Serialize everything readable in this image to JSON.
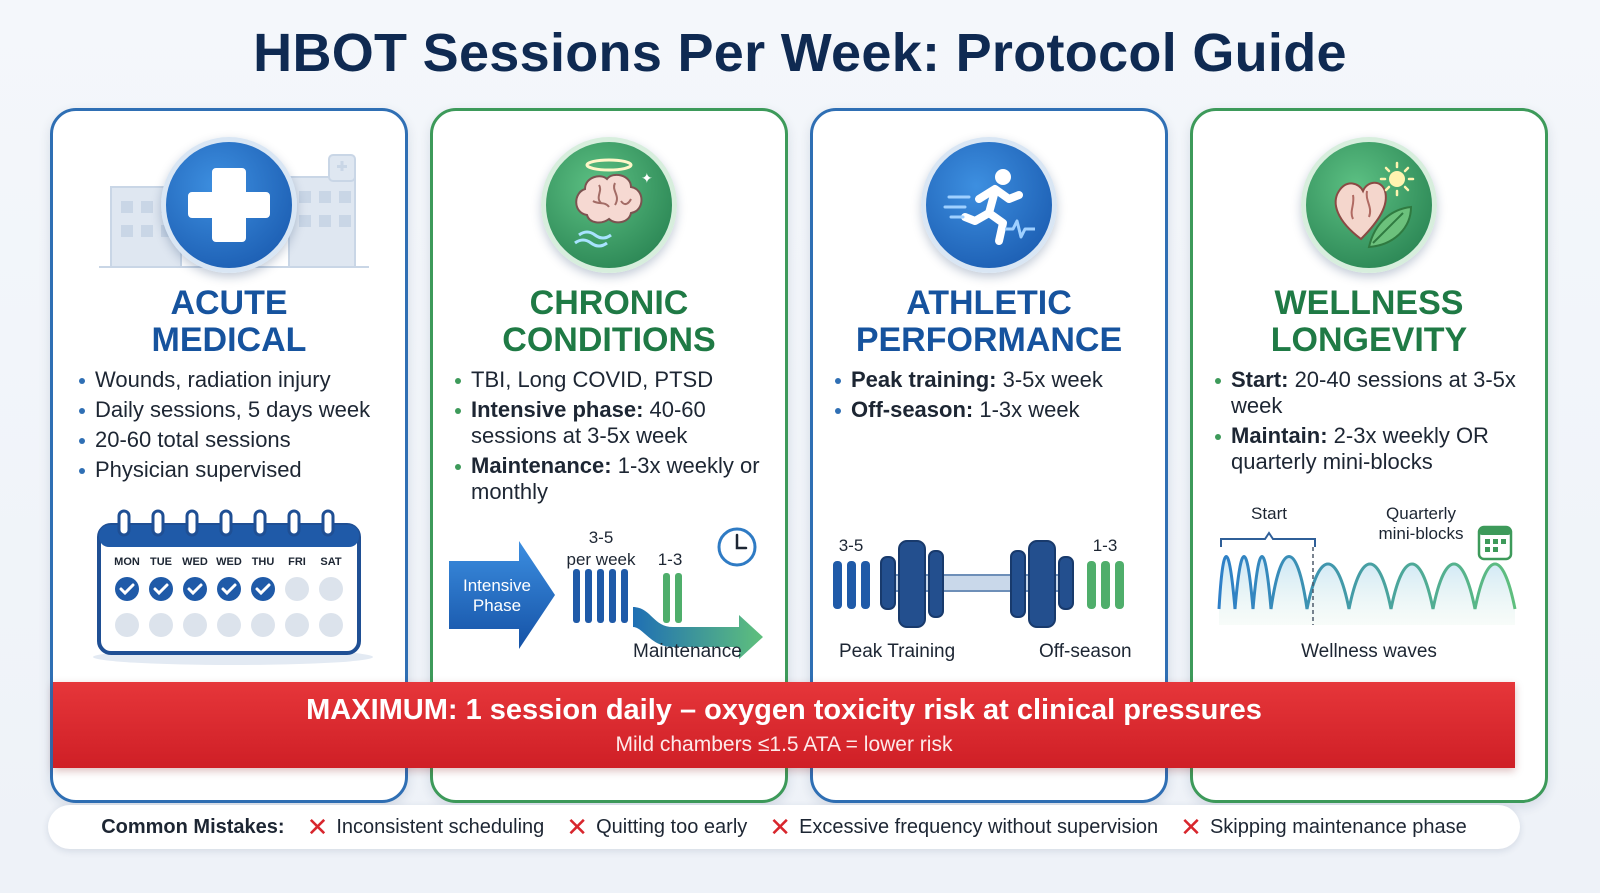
{
  "title": "HBOT Sessions Per Week: Protocol Guide",
  "cards": [
    {
      "title_line1": "ACUTE",
      "title_line2": "MEDICAL",
      "icon": "medical-cross-icon",
      "bullets": [
        {
          "bold": "",
          "text": "Wounds, radiation injury"
        },
        {
          "bold": "",
          "text": "Daily sessions, 5 days week"
        },
        {
          "bold": "",
          "text": "20-60 total sessions"
        },
        {
          "bold": "",
          "text": "Physician supervised"
        }
      ],
      "calendar_days": [
        "MON",
        "TUE",
        "WED",
        "WED",
        "THU",
        "FRI",
        "SAT"
      ]
    },
    {
      "title_line1": "CHRONIC",
      "title_line2": "CONDITIONS",
      "icon": "brain-icon",
      "bullets": [
        {
          "bold": "",
          "text": "TBI, Long COVID, PTSD"
        },
        {
          "bold": "Intensive phase:",
          "text": " 40-60 sessions at 3-5x week"
        },
        {
          "bold": "Maintenance:",
          "text": " 1-3x weekly or monthly"
        }
      ],
      "graphic": {
        "arrow_label_line1": "Intensive",
        "arrow_label_line2": "Phase",
        "rate_line1": "3-5",
        "rate_line2": "per week",
        "maint_rate": "1-3",
        "maint_label": "Maintenance"
      }
    },
    {
      "title_line1": "ATHLETIC",
      "title_line2": "PERFORMANCE",
      "icon": "runner-icon",
      "bullets": [
        {
          "bold": "Peak training:",
          "text": " 3-5x week"
        },
        {
          "bold": "Off-season:",
          "text": " 1-3x week"
        }
      ],
      "graphic": {
        "left_rate": "3-5",
        "right_rate": "1-3",
        "left_label": "Peak Training",
        "right_label": "Off-season"
      }
    },
    {
      "title_line1": "WELLNESS",
      "title_line2": "LONGEVITY",
      "icon": "heart-leaf-icon",
      "bullets": [
        {
          "bold": "Start:",
          "text": " 20-40 sessions at 3-5x week"
        },
        {
          "bold": "Maintain:",
          "text": " 2-3x weekly OR quarterly mini-blocks"
        }
      ],
      "graphic": {
        "start_label": "Start",
        "quarterly_line1": "Quarterly",
        "quarterly_line2": "mini-blocks",
        "waves_label": "Wellness waves"
      }
    }
  ],
  "banner": {
    "main": "MAXIMUM: 1 session daily – oxygen toxicity risk at clinical pressures",
    "sub": "Mild chambers ≤1.5 ATA = lower risk"
  },
  "mistakes": {
    "label": "Common Mistakes:",
    "items": [
      "Inconsistent scheduling",
      "Quitting too early",
      "Excessive frequency without supervision",
      "Skipping maintenance phase"
    ]
  },
  "colors": {
    "blue": "#16539e",
    "green": "#1f7a45",
    "red": "#d8262d",
    "navy": "#0f2a52"
  }
}
